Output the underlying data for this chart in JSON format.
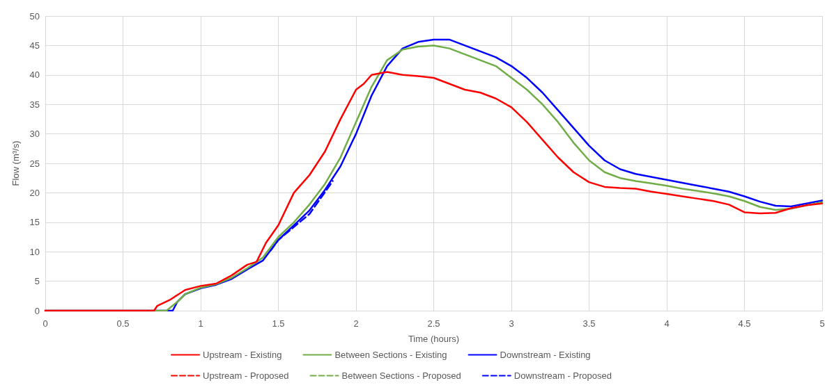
{
  "chart_data": {
    "type": "line",
    "xlabel": "Time (hours)",
    "ylabel": "Flow (m³/s)",
    "xlim": [
      0,
      5
    ],
    "xticks": [
      0,
      0.5,
      1,
      1.5,
      2,
      2.5,
      3,
      3.5,
      4,
      4.5,
      5
    ],
    "ylim": [
      0,
      50
    ],
    "yticks": [
      0,
      5,
      10,
      15,
      20,
      25,
      30,
      35,
      40,
      45,
      50
    ],
    "grid": true,
    "legend": "bottom",
    "marker": "none",
    "series": [
      {
        "name": "Upstream - Existing",
        "color": "#ff0000",
        "line_style": "solid",
        "x": [
          0,
          0.7,
          0.72,
          0.8,
          0.9,
          1,
          1.1,
          1.2,
          1.3,
          1.36,
          1.42,
          1.5,
          1.6,
          1.7,
          1.8,
          1.9,
          2,
          2.05,
          2.1,
          2.2,
          2.3,
          2.4,
          2.5,
          2.6,
          2.7,
          2.8,
          2.9,
          3,
          3.1,
          3.2,
          3.3,
          3.4,
          3.5,
          3.6,
          3.7,
          3.8,
          3.9,
          4,
          4.1,
          4.2,
          4.3,
          4.4,
          4.5,
          4.6,
          4.7,
          4.8,
          4.9,
          5
        ],
        "values": [
          0,
          0,
          0.8,
          1.8,
          3.5,
          4.2,
          4.6,
          6,
          7.8,
          8.3,
          11.5,
          14.5,
          20,
          23,
          27,
          32.5,
          37.5,
          38.5,
          40,
          40.5,
          40,
          39.8,
          39.5,
          38.5,
          37.5,
          37,
          36,
          34.5,
          32,
          29,
          26,
          23.5,
          21.8,
          21,
          20.8,
          20.7,
          20.2,
          19.8,
          19.4,
          19,
          18.6,
          18,
          16.7,
          16.5,
          16.6,
          17.4,
          17.9,
          18.2
        ]
      },
      {
        "name": "Between Sections - Existing",
        "color": "#70ad47",
        "line_style": "solid",
        "x": [
          0,
          0.78,
          0.85,
          0.9,
          1,
          1.1,
          1.2,
          1.3,
          1.4,
          1.5,
          1.6,
          1.7,
          1.8,
          1.9,
          2,
          2.1,
          2.2,
          2.3,
          2.4,
          2.5,
          2.6,
          2.7,
          2.8,
          2.9,
          3,
          3.1,
          3.2,
          3.3,
          3.4,
          3.5,
          3.6,
          3.7,
          3.8,
          3.9,
          4,
          4.1,
          4.2,
          4.3,
          4.4,
          4.5,
          4.6,
          4.7,
          4.8,
          4.9,
          5
        ],
        "values": [
          0,
          0,
          1.5,
          2.8,
          3.9,
          4.5,
          5.6,
          7.2,
          9,
          12.5,
          15,
          18,
          21.5,
          26,
          32,
          38,
          42.5,
          44.3,
          44.8,
          45,
          44.5,
          43.5,
          42.5,
          41.5,
          39.5,
          37.5,
          35,
          32,
          28.5,
          25.5,
          23.5,
          22.5,
          22,
          21.6,
          21.2,
          20.7,
          20.3,
          19.9,
          19.4,
          18.6,
          17.6,
          17.1,
          17.3,
          17.9,
          18.4
        ]
      },
      {
        "name": "Downstream - Existing",
        "color": "#0000ff",
        "line_style": "solid",
        "x": [
          0,
          0.82,
          0.85,
          0.9,
          1,
          1.1,
          1.2,
          1.3,
          1.4,
          1.5,
          1.6,
          1.7,
          1.8,
          1.9,
          2,
          2.1,
          2.2,
          2.3,
          2.4,
          2.5,
          2.6,
          2.7,
          2.8,
          2.9,
          3,
          3.1,
          3.2,
          3.3,
          3.4,
          3.5,
          3.6,
          3.7,
          3.8,
          3.9,
          4,
          4.1,
          4.2,
          4.3,
          4.4,
          4.5,
          4.6,
          4.7,
          4.8,
          4.9,
          5
        ],
        "values": [
          0,
          0,
          1.5,
          2.8,
          3.8,
          4.4,
          5.4,
          7,
          8.5,
          12,
          14.5,
          17,
          20.5,
          24.5,
          30,
          36.5,
          41.5,
          44.5,
          45.6,
          46,
          46,
          45,
          44,
          43,
          41.5,
          39.5,
          37,
          34,
          31,
          28,
          25.5,
          24,
          23.2,
          22.7,
          22.2,
          21.7,
          21.2,
          20.7,
          20.2,
          19.4,
          18.5,
          17.8,
          17.7,
          18.2,
          18.7
        ]
      },
      {
        "name": "Upstream - Proposed",
        "color": "#ff0000",
        "line_style": "dashed"
      },
      {
        "name": "Between Sections - Proposed",
        "color": "#70ad47",
        "line_style": "dashed"
      },
      {
        "name": "Downstream - Proposed",
        "color": "#0000ff",
        "line_style": "dashed",
        "x": [
          1.45,
          1.5,
          1.6,
          1.7,
          1.8,
          1.85
        ],
        "values": [
          10.2,
          12,
          14.2,
          16.4,
          20.1,
          22
        ]
      }
    ]
  }
}
